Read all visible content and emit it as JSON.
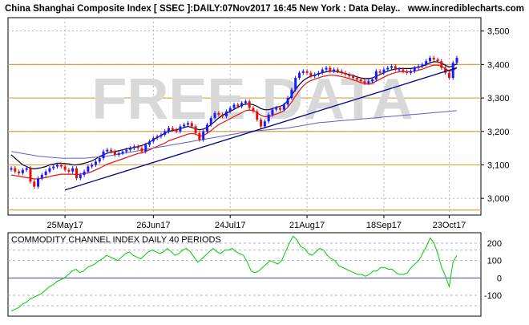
{
  "header": {
    "title": "China Shanghai Composite Index [ SSEC ]:DAILY:07Nov2017 16:45 New York : Data Delay..",
    "website": "www.incrediblecharts.com"
  },
  "watermark": "FREE DATA",
  "colors": {
    "frame": "#000000",
    "background": "#ffffff",
    "grid_dash": "#b0b0d0",
    "support_line": "#e0a040",
    "up_candle": "#1a1aff",
    "down_candle": "#e01010",
    "ma_short": "#000033",
    "ma_red": "#e01010",
    "ma_long": "#6060c0",
    "trendline": "#000080",
    "cci_line": "#00cc00",
    "cci_level": "#4040a0",
    "watermark": "#d8d8d8"
  },
  "chart_data": [
    {
      "type": "candlestick",
      "title": "China Shanghai Composite Index [ SSEC ]:DAILY:07Nov2017 16:45 New York : Data Delay..",
      "x_tick_labels": [
        "25May17",
        "26Jun17",
        "24Jul17",
        "21Aug17",
        "18Sep17",
        "23Oct17"
      ],
      "y_tick_labels": [
        "3,000",
        "3,100",
        "3,200",
        "3,300",
        "3,400",
        "3,500"
      ],
      "ylim": [
        2950,
        3540
      ],
      "grid": true,
      "horizontal_lines": [
        3400,
        3300,
        3200,
        3100,
        2965
      ],
      "series": [
        {
          "name": "",
          "type": "candles",
          "values": [
            3090,
            3080,
            3075,
            3085,
            3090,
            3050,
            3035,
            3060,
            3070,
            3080,
            3090,
            3095,
            3100,
            3095,
            3085,
            3080,
            3090,
            3060,
            3070,
            3080,
            3095,
            3100,
            3110,
            3120,
            3140,
            3145,
            3140,
            3130,
            3135,
            3140,
            3145,
            3150,
            3155,
            3150,
            3140,
            3160,
            3170,
            3180,
            3185,
            3190,
            3200,
            3210,
            3205,
            3200,
            3215,
            3220,
            3225,
            3215,
            3195,
            3175,
            3200,
            3220,
            3240,
            3255,
            3250,
            3245,
            3260,
            3270,
            3280,
            3275,
            3285,
            3290,
            3270,
            3260,
            3235,
            3215,
            3230,
            3250,
            3265,
            3270,
            3265,
            3280,
            3300,
            3325,
            3360,
            3375,
            3380,
            3375,
            3365,
            3370,
            3375,
            3385,
            3390,
            3380,
            3385,
            3380,
            3375,
            3370,
            3365,
            3360,
            3355,
            3350,
            3345,
            3350,
            3355,
            3380,
            3375,
            3385,
            3390,
            3395,
            3385,
            3385,
            3380,
            3375,
            3380,
            3390,
            3395,
            3400,
            3410,
            3420,
            3415,
            3410,
            3390,
            3375,
            3360,
            3405,
            3420
          ]
        },
        {
          "name": "",
          "type": "moving average",
          "values": [
            3130,
            3120,
            3110,
            3100,
            3095,
            3090,
            3088,
            3090,
            3092,
            3095,
            3100,
            3102,
            3105,
            3105,
            3104,
            3103,
            3100,
            3100,
            3102,
            3105,
            3108,
            3112,
            3118,
            3125,
            3130,
            3135,
            3138,
            3140,
            3142,
            3145,
            3148,
            3150,
            3152,
            3155,
            3158,
            3162,
            3168,
            3175,
            3182,
            3188,
            3195,
            3200,
            3203,
            3205,
            3208,
            3212,
            3215,
            3212,
            3208,
            3205,
            3207,
            3212,
            3220,
            3230,
            3240,
            3248,
            3254,
            3260,
            3266,
            3272,
            3278,
            3282,
            3282,
            3280,
            3275,
            3268,
            3265,
            3265,
            3268,
            3272,
            3275,
            3280,
            3292,
            3308,
            3325,
            3340,
            3352,
            3360,
            3365,
            3368,
            3372,
            3376,
            3378,
            3380,
            3380,
            3378,
            3376,
            3373,
            3370,
            3367,
            3363,
            3360,
            3358,
            3358,
            3360,
            3365,
            3370,
            3375,
            3380,
            3384,
            3386,
            3388,
            3388,
            3388,
            3388,
            3390,
            3392,
            3395,
            3400,
            3405,
            3408,
            3408,
            3404,
            3398,
            3392,
            3396,
            3402
          ]
        },
        {
          "name": "",
          "type": "moving average",
          "values": [
            3070,
            3068,
            3066,
            3064,
            3062,
            3060,
            3058,
            3058,
            3060,
            3062,
            3065,
            3068,
            3070,
            3072,
            3072,
            3072,
            3072,
            3071,
            3072,
            3074,
            3076,
            3080,
            3085,
            3090,
            3096,
            3102,
            3106,
            3110,
            3114,
            3118,
            3122,
            3126,
            3130,
            3134,
            3136,
            3140,
            3145,
            3150,
            3155,
            3160,
            3165,
            3172,
            3176,
            3180,
            3184,
            3188,
            3192,
            3194,
            3192,
            3186,
            3188,
            3194,
            3202,
            3212,
            3220,
            3226,
            3232,
            3238,
            3244,
            3250,
            3256,
            3262,
            3264,
            3262,
            3256,
            3248,
            3244,
            3244,
            3248,
            3252,
            3256,
            3262,
            3272,
            3288,
            3306,
            3322,
            3336,
            3346,
            3352,
            3356,
            3360,
            3364,
            3366,
            3368,
            3368,
            3366,
            3364,
            3361,
            3358,
            3354,
            3350,
            3346,
            3343,
            3342,
            3344,
            3350,
            3356,
            3362,
            3368,
            3372,
            3376,
            3378,
            3378,
            3378,
            3378,
            3380,
            3383,
            3386,
            3390,
            3395,
            3398,
            3398,
            3395,
            3388,
            3380,
            3382,
            3390
          ]
        },
        {
          "name": "",
          "type": "moving average",
          "values": [
            3140,
            3138,
            3136,
            3134,
            3132,
            3130,
            3128,
            3126,
            3125,
            3124,
            3123,
            3122,
            3121,
            3120,
            3120,
            3120,
            3120,
            3120,
            3120,
            3120,
            3121,
            3122,
            3123,
            3124,
            3125,
            3126,
            3128,
            3130,
            3132,
            3134,
            3136,
            3138,
            3140,
            3142,
            3144,
            3146,
            3148,
            3150,
            3152,
            3154,
            3156,
            3158,
            3160,
            3162,
            3164,
            3166,
            3168,
            3170,
            3172,
            3174,
            3176,
            3178,
            3180,
            3182,
            3184,
            3186,
            3188,
            3190,
            3192,
            3194,
            3196,
            3198,
            3200,
            3201,
            3202,
            3203,
            3204,
            3205,
            3206,
            3207,
            3208,
            3209,
            3210,
            3212,
            3214,
            3216,
            3218,
            3220,
            3222,
            3224,
            3226,
            3227,
            3228,
            3229,
            3230,
            3231,
            3232,
            3233,
            3234,
            3235,
            3236,
            3237,
            3238,
            3239,
            3240,
            3241,
            3242,
            3243,
            3244,
            3245,
            3246,
            3247,
            3248,
            3249,
            3250,
            3251,
            3252,
            3253,
            3254,
            3255,
            3256,
            3257,
            3258,
            3259,
            3260,
            3261,
            3262
          ]
        }
      ],
      "trendline": {
        "from_index": 14,
        "from_value": 3025,
        "to_index": 116,
        "to_value": 3390
      }
    },
    {
      "type": "line",
      "title": "COMMODITY CHANNEL INDEX DAILY 40 PERIODS",
      "y_tick_labels": [
        "200",
        "100",
        "0",
        "-100"
      ],
      "ylim": [
        -220,
        260
      ],
      "grid": true,
      "series": [
        {
          "name": "",
          "values": [
            -190,
            -180,
            -170,
            -150,
            -140,
            -120,
            -110,
            -100,
            -90,
            -70,
            -50,
            -40,
            -20,
            -10,
            0,
            20,
            40,
            50,
            30,
            40,
            60,
            70,
            80,
            100,
            110,
            130,
            120,
            110,
            100,
            120,
            140,
            150,
            130,
            120,
            110,
            130,
            150,
            160,
            150,
            140,
            150,
            170,
            150,
            130,
            140,
            160,
            170,
            150,
            120,
            90,
            110,
            130,
            150,
            170,
            150,
            140,
            160,
            160,
            170,
            150,
            140,
            130,
            90,
            40,
            30,
            40,
            60,
            80,
            100,
            90,
            80,
            100,
            150,
            200,
            240,
            220,
            180,
            170,
            140,
            130,
            150,
            170,
            160,
            130,
            110,
            100,
            70,
            60,
            50,
            40,
            30,
            20,
            20,
            10,
            20,
            40,
            40,
            60,
            60,
            50,
            50,
            30,
            20,
            20,
            30,
            60,
            80,
            100,
            140,
            180,
            230,
            200,
            140,
            60,
            10,
            -50,
            90,
            130
          ]
        }
      ]
    }
  ]
}
